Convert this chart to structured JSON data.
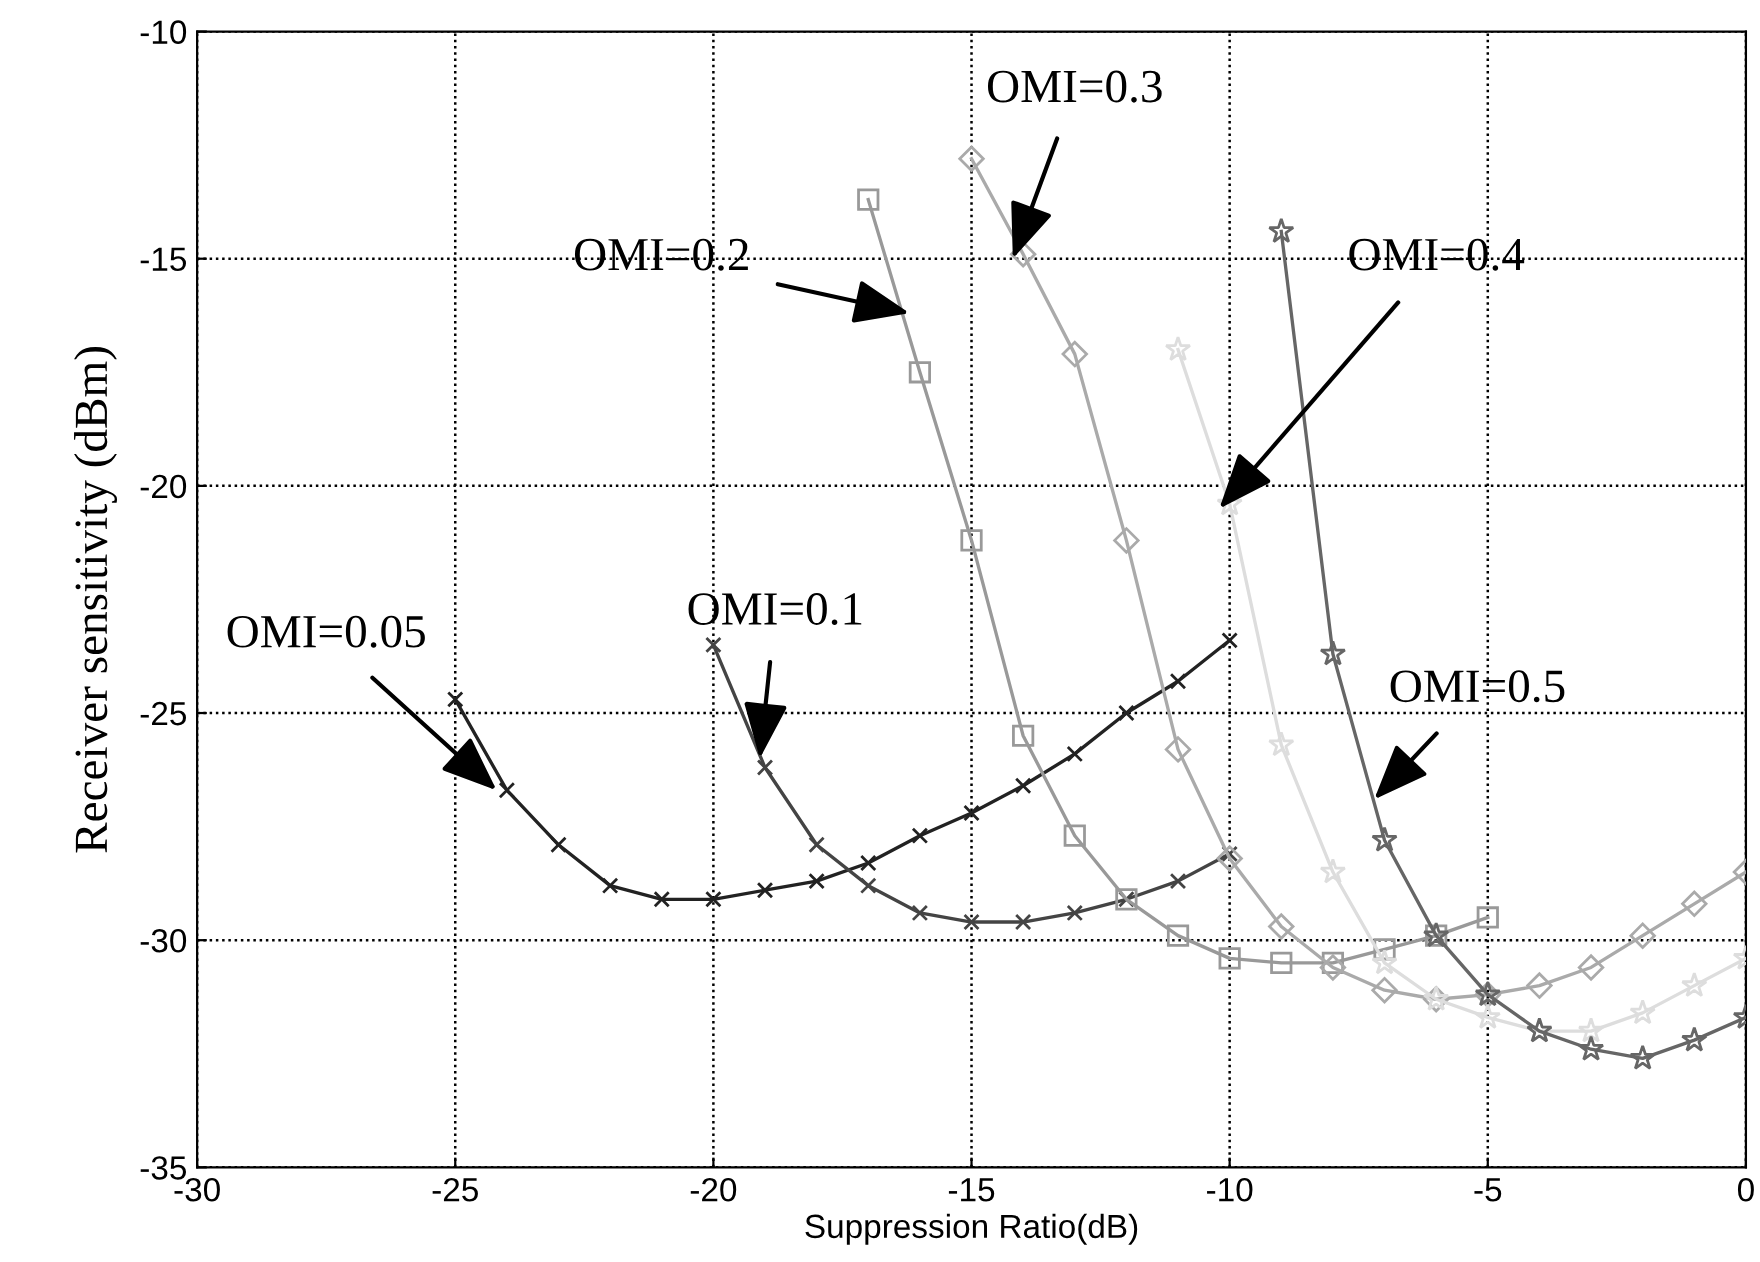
{
  "chart_data": {
    "type": "line",
    "xlabel": "Suppression Ratio(dB)",
    "ylabel": "Receiver sensitivity (dBm)",
    "xlim": [
      -30,
      0
    ],
    "ylim": [
      -35,
      -10
    ],
    "xticks": [
      -30,
      -25,
      -20,
      -15,
      -10,
      -5,
      0
    ],
    "yticks": [
      -35,
      -30,
      -25,
      -20,
      -15,
      -10
    ],
    "grid": true,
    "legend": false,
    "line_style": "solid",
    "series": [
      {
        "x": [
          -25,
          -24,
          -23,
          -22,
          -21,
          -20,
          -19,
          -18,
          -17,
          -16,
          -15,
          -14,
          -13,
          -12,
          -11,
          -10
        ],
        "values": [
          -24.7,
          -26.7,
          -27.9,
          -28.8,
          -29.1,
          -29.1,
          -28.9,
          -28.7,
          -28.3,
          -27.7,
          -27.2,
          -26.6,
          -25.9,
          -25.0,
          -24.3,
          -23.4
        ],
        "color": "#222222",
        "marker": "cross"
      },
      {
        "x": [
          -20,
          -19,
          -18,
          -17,
          -16,
          -15,
          -14,
          -13,
          -12,
          -11,
          -10
        ],
        "values": [
          -23.5,
          -26.2,
          -27.9,
          -28.8,
          -29.4,
          -29.6,
          -29.6,
          -29.4,
          -29.1,
          -28.7,
          -28.1
        ],
        "color": "#444444",
        "marker": "cross"
      },
      {
        "x": [
          -17,
          -16,
          -15,
          -14,
          -13,
          -12,
          -11,
          -10,
          -9,
          -8,
          -7,
          -6,
          -5
        ],
        "values": [
          -13.7,
          -17.5,
          -21.2,
          -25.5,
          -27.7,
          -29.1,
          -29.9,
          -30.4,
          -30.5,
          -30.5,
          -30.2,
          -29.9,
          -29.5
        ],
        "color": "#999999",
        "marker": "square"
      },
      {
        "x": [
          -15,
          -14,
          -13,
          -12,
          -11,
          -10,
          -9,
          -8,
          -7,
          -6,
          -5,
          -4,
          -3,
          -2,
          -1,
          0
        ],
        "values": [
          -12.8,
          -14.9,
          -17.1,
          -21.2,
          -25.8,
          -28.2,
          -29.7,
          -30.6,
          -31.1,
          -31.3,
          -31.2,
          -31.0,
          -30.6,
          -29.9,
          -29.2,
          -28.5
        ],
        "color": "#aaaaaa",
        "marker": "diamond"
      },
      {
        "x": [
          -11,
          -10,
          -9,
          -8,
          -7,
          -6,
          -5,
          -4,
          -3,
          -2,
          -1,
          0
        ],
        "values": [
          -17.0,
          -20.4,
          -25.7,
          -28.5,
          -30.5,
          -31.3,
          -31.7,
          -32.0,
          -32.0,
          -31.6,
          -31.0,
          -30.4
        ],
        "color": "#dddddd",
        "marker": "star"
      },
      {
        "x": [
          -9,
          -8,
          -7,
          -6,
          -5,
          -4,
          -3,
          -2,
          -1,
          0
        ],
        "values": [
          -14.4,
          -23.7,
          -27.8,
          -29.9,
          -31.2,
          -32.0,
          -32.4,
          -32.6,
          -32.2,
          -31.7
        ],
        "color": "#666666",
        "marker": "star"
      }
    ],
    "annotations": [
      {
        "text": "OMI=0.05",
        "x": -24.2,
        "y": -26.7
      },
      {
        "text": "OMI=0.1",
        "x": -19.1,
        "y": -26.0
      },
      {
        "text": "OMI=0.2",
        "x": -16.2,
        "y": -16.2
      },
      {
        "text": "OMI=0.3",
        "x": -14.2,
        "y": -15.0
      },
      {
        "text": "OMI=0.4",
        "x": -10.2,
        "y": -20.5
      },
      {
        "text": "OMI=0.5",
        "x": -7.2,
        "y": -26.9
      }
    ]
  }
}
